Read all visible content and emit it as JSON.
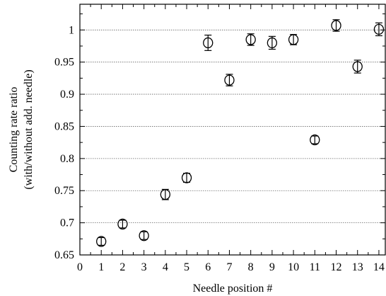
{
  "chart_data": {
    "type": "scatter",
    "xlabel": "Needle position #",
    "ylabel": [
      "Counting rate ratio",
      "(with/without add. needle)"
    ],
    "xlim": [
      0,
      14.3
    ],
    "ylim": [
      0.65,
      1.04
    ],
    "x_ticks": [
      0,
      1,
      2,
      3,
      4,
      5,
      6,
      7,
      8,
      9,
      10,
      11,
      12,
      13,
      14
    ],
    "y_ticks": [
      0.65,
      0.7,
      0.75,
      0.8,
      0.85,
      0.9,
      0.95,
      1
    ],
    "y_tick_labels": [
      "0.65",
      "0.7",
      "0.75",
      "0.8",
      "0.85",
      "0.9",
      "0.95",
      "1"
    ],
    "grid": "horizontal dotted",
    "marker": "open circle with error bars",
    "series": [
      {
        "x": [
          1,
          2,
          3,
          4,
          5,
          6,
          7,
          8,
          9,
          10,
          11,
          12,
          13,
          14
        ],
        "y": [
          0.671,
          0.698,
          0.68,
          0.744,
          0.77,
          0.98,
          0.922,
          0.985,
          0.98,
          0.985,
          0.829,
          1.007,
          0.943,
          1.001
        ],
        "err": [
          0.006,
          0.006,
          0.006,
          0.008,
          0.007,
          0.012,
          0.009,
          0.009,
          0.01,
          0.008,
          0.006,
          0.009,
          0.01,
          0.01
        ]
      }
    ]
  }
}
